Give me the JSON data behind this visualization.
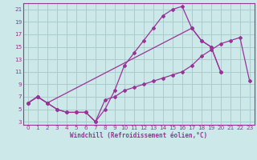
{
  "background_color": "#cce8e8",
  "grid_color": "#aacccc",
  "line_color": "#993399",
  "marker": "D",
  "marker_size": 2.0,
  "xlim": [
    -0.5,
    23.5
  ],
  "ylim": [
    2.5,
    22
  ],
  "xticks": [
    0,
    1,
    2,
    3,
    4,
    5,
    6,
    7,
    8,
    9,
    10,
    11,
    12,
    13,
    14,
    15,
    16,
    17,
    18,
    19,
    20,
    21,
    22,
    23
  ],
  "yticks": [
    3,
    5,
    7,
    9,
    11,
    13,
    15,
    17,
    19,
    21
  ],
  "xlabel": "Windchill (Refroidissement éolien,°C)",
  "curve1_x": [
    0,
    1,
    2,
    3,
    4,
    5,
    6,
    7,
    8,
    9,
    10,
    11,
    12,
    13,
    14,
    15,
    16,
    17,
    18,
    19,
    20
  ],
  "curve1_y": [
    6,
    7,
    6,
    5,
    4.5,
    4.5,
    4.5,
    3,
    5,
    8,
    12,
    14,
    16,
    18,
    20,
    21,
    21.5,
    18,
    16,
    15,
    11
  ],
  "curve2_x": [
    0,
    1,
    2,
    17,
    18,
    19,
    20
  ],
  "curve2_y": [
    6,
    7,
    6,
    18,
    16,
    15,
    11
  ],
  "curve3_x": [
    0,
    1,
    2,
    3,
    4,
    5,
    6,
    7,
    8,
    9,
    10,
    11,
    12,
    13,
    14,
    15,
    16,
    17,
    18,
    19,
    20,
    21,
    22,
    23
  ],
  "curve3_y": [
    6,
    7,
    6,
    5,
    4.5,
    4.5,
    4.5,
    3,
    6.5,
    7,
    8,
    8.5,
    9,
    9.5,
    10,
    10.5,
    11,
    12,
    13.5,
    14.5,
    15.5,
    16,
    16.5,
    9.5
  ],
  "xlabel_fontsize": 5.5,
  "tick_fontsize": 5.2,
  "linewidth": 0.9
}
